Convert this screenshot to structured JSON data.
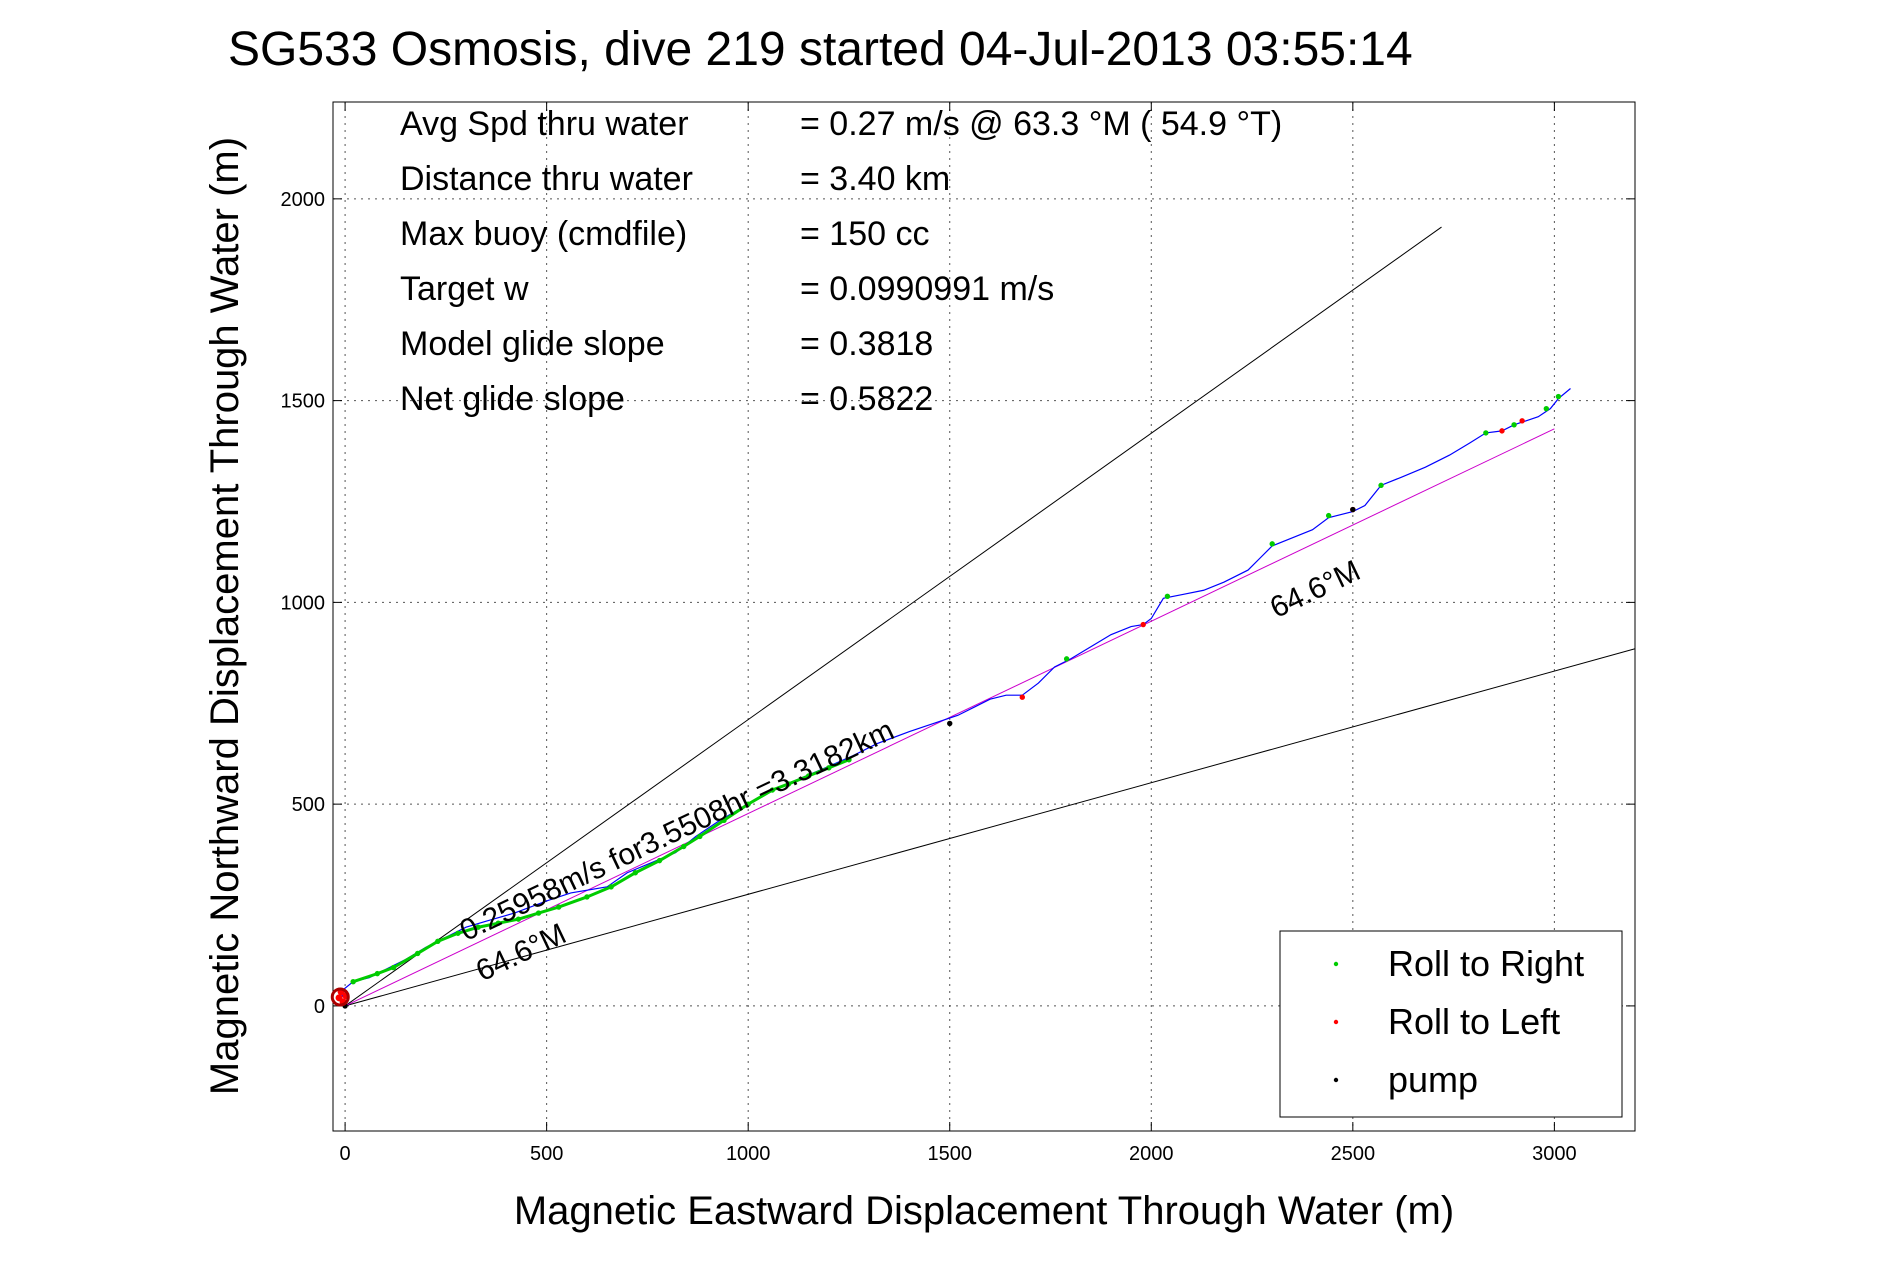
{
  "chart_data": {
    "type": "scatter",
    "title": "SG533 Osmosis, dive 219 started 04-Jul-2013 03:55:14",
    "xlabel": "Magnetic Eastward Displacement Through Water (m)",
    "ylabel": "Magnetic Northward Displacement Through Water (m)",
    "xlim": [
      -30,
      3200
    ],
    "ylim": [
      -310,
      2240
    ],
    "x_ticks": [
      0,
      500,
      1000,
      1500,
      2000,
      2500,
      3000
    ],
    "y_ticks": [
      0,
      500,
      1000,
      1500,
      2000
    ],
    "grid": true,
    "stats": [
      {
        "label": "Avg Spd thru water",
        "value": "=  0.27 m/s @  63.3 °M ( 54.9 °T)"
      },
      {
        "label": "Distance thru water",
        "value": "=  3.40 km"
      },
      {
        "label": "Max buoy (cmdfile)",
        "value": "= 150 cc"
      },
      {
        "label": "Target w",
        "value": "= 0.0990991 m/s"
      },
      {
        "label": "Model glide slope",
        "value": "= 0.3818"
      },
      {
        "label": "Net glide slope",
        "value": "= 0.5822"
      }
    ],
    "legend": {
      "placement": "bottom-right",
      "entries": [
        {
          "name": "Roll to Right",
          "color": "#00cc00"
        },
        {
          "name": "Roll to Left",
          "color": "#ff0000"
        },
        {
          "name": "pump",
          "color": "#000000"
        }
      ]
    },
    "annotations": [
      {
        "text": "0.25958m/s for3.5508hr =3.3182km",
        "x": 300,
        "y": 160,
        "angle_deg": 25.4
      },
      {
        "text": "64.6°M",
        "x": 340,
        "y": 60,
        "angle_deg": 25.4
      },
      {
        "text": "64.6°M",
        "x": 2310,
        "y": 960,
        "angle_deg": 25.4
      }
    ],
    "reference_lines": [
      {
        "name": "upper",
        "color": "#000000",
        "from": [
          0,
          0
        ],
        "to": [
          2720,
          1930
        ]
      },
      {
        "name": "lower",
        "color": "#000000",
        "from": [
          0,
          0
        ],
        "to": [
          3200,
          885
        ]
      },
      {
        "name": "net",
        "color": "#cc00cc",
        "from": [
          0,
          0
        ],
        "to": [
          3000,
          1430
        ]
      }
    ],
    "series": [
      {
        "name": "track",
        "color": "#0000ff",
        "x": [
          -10,
          -5,
          20,
          60,
          100,
          150,
          200,
          250,
          300,
          350,
          420,
          500,
          560,
          650,
          700,
          760,
          820,
          870,
          930,
          1000,
          1060,
          1120,
          1180,
          1260,
          1320,
          1400,
          1460,
          1520,
          1560,
          1600,
          1640,
          1680,
          1720,
          1760,
          1800,
          1850,
          1900,
          1950,
          1980,
          2000,
          2030,
          2080,
          2130,
          2180,
          2240,
          2270,
          2300,
          2350,
          2400,
          2440,
          2500,
          2530,
          2570,
          2620,
          2680,
          2740,
          2790,
          2830,
          2870,
          2900,
          2930,
          2960,
          2990,
          3010,
          3040
        ],
        "y": [
          10,
          40,
          60,
          70,
          90,
          115,
          145,
          170,
          195,
          210,
          230,
          260,
          280,
          295,
          330,
          355,
          380,
          420,
          460,
          500,
          535,
          560,
          585,
          620,
          650,
          680,
          700,
          720,
          740,
          760,
          770,
          770,
          800,
          840,
          860,
          890,
          920,
          940,
          945,
          960,
          1010,
          1020,
          1030,
          1050,
          1080,
          1110,
          1140,
          1160,
          1180,
          1210,
          1225,
          1240,
          1290,
          1310,
          1335,
          1365,
          1395,
          1420,
          1425,
          1440,
          1450,
          1460,
          1480,
          1505,
          1530
        ]
      },
      {
        "name": "Roll to Right",
        "color": "#00cc00",
        "x": [
          20,
          80,
          120,
          180,
          230,
          280,
          330,
          380,
          430,
          480,
          530,
          600,
          660,
          720,
          780,
          840,
          880,
          940,
          1000,
          1060,
          1100,
          1150,
          1200,
          1250,
          1790,
          2040,
          2300,
          2440,
          2570,
          2830,
          2900,
          2980,
          3010
        ],
        "y": [
          60,
          80,
          95,
          130,
          160,
          180,
          195,
          205,
          215,
          230,
          245,
          270,
          295,
          330,
          360,
          395,
          420,
          460,
          500,
          535,
          550,
          570,
          590,
          610,
          860,
          1015,
          1145,
          1215,
          1290,
          1420,
          1440,
          1480,
          1510
        ]
      },
      {
        "name": "Roll to Left",
        "color": "#ff0000",
        "x": [
          -15,
          -10,
          -5,
          2,
          1680,
          1980,
          2500,
          2870,
          2920
        ],
        "y": [
          20,
          35,
          10,
          25,
          765,
          945,
          1230,
          1425,
          1450
        ]
      },
      {
        "name": "pump",
        "color": "#000000",
        "x": [
          0,
          1500,
          2500
        ],
        "y": [
          0,
          700,
          1230
        ]
      }
    ]
  }
}
